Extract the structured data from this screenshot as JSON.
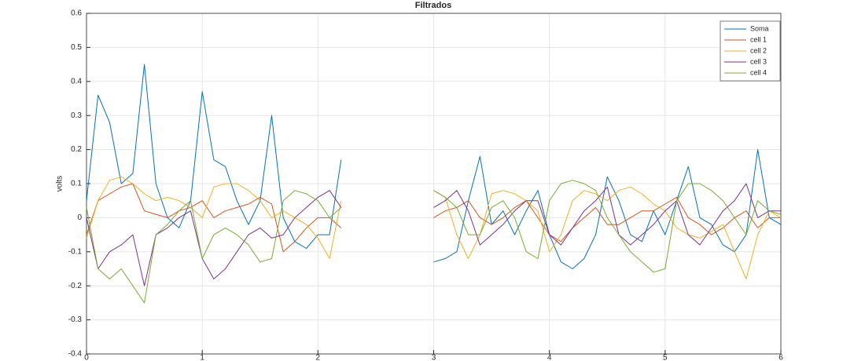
{
  "chart_data": {
    "type": "line",
    "title": "Filtrados",
    "y_label": "volts",
    "x": [
      0,
      0.1,
      0.2,
      0.3,
      0.4,
      0.5,
      0.6,
      0.7,
      0.8,
      0.9,
      1,
      1.1,
      1.2,
      1.3,
      1.4,
      1.5,
      1.6,
      1.7,
      1.8,
      1.9,
      2,
      2.1,
      2.2,
      2.3,
      2.4,
      2.5,
      2.6,
      2.7,
      2.8,
      2.9,
      3,
      3.1,
      3.2,
      3.3,
      3.4,
      3.5,
      3.6,
      3.7,
      3.8,
      3.9,
      4,
      4.1,
      4.2,
      4.3,
      4.4,
      4.5,
      4.6,
      4.7,
      4.8,
      4.9,
      5,
      5.1,
      5.2,
      5.3,
      5.4,
      5.5,
      5.6,
      5.7,
      5.8,
      5.9,
      6
    ],
    "series": [
      {
        "name": "Soma",
        "color": "#0072BD",
        "values": [
          0.05,
          0.36,
          0.28,
          0.1,
          0.13,
          0.45,
          0.1,
          0.0,
          -0.03,
          0.05,
          0.37,
          0.17,
          0.15,
          0.05,
          -0.02,
          0.05,
          0.3,
          0.0,
          -0.07,
          -0.09,
          -0.05,
          -0.05,
          0.17,
          null,
          null,
          null,
          null,
          null,
          null,
          null,
          -0.13,
          -0.12,
          -0.1,
          0.05,
          0.18,
          -0.02,
          0.02,
          -0.05,
          0.02,
          0.08,
          -0.05,
          -0.13,
          -0.15,
          -0.12,
          -0.05,
          0.12,
          0.05,
          -0.05,
          -0.07,
          0.02,
          -0.05,
          0.05,
          0.15,
          0.0,
          -0.02,
          -0.08,
          -0.1,
          -0.05,
          0.2,
          0.0,
          -0.02
        ]
      },
      {
        "name": "cell 1",
        "color": "#D95319",
        "values": [
          -0.05,
          0.05,
          0.07,
          0.09,
          0.1,
          0.02,
          0.01,
          0.0,
          0.02,
          0.03,
          0.05,
          0.0,
          0.02,
          0.03,
          0.04,
          0.06,
          0.04,
          -0.1,
          -0.07,
          -0.03,
          0.0,
          0.0,
          -0.03,
          null,
          null,
          null,
          null,
          null,
          null,
          null,
          0.0,
          0.02,
          0.03,
          0.05,
          0.0,
          -0.02,
          0.0,
          0.03,
          0.05,
          0.0,
          -0.05,
          -0.07,
          -0.03,
          0.0,
          0.03,
          -0.02,
          -0.02,
          0.0,
          0.02,
          0.02,
          0.04,
          0.06,
          0.0,
          -0.02,
          -0.05,
          -0.03,
          0.0,
          0.02,
          -0.03,
          0.0,
          0.0
        ]
      },
      {
        "name": "cell 2",
        "color": "#EDB120",
        "values": [
          -0.06,
          0.05,
          0.11,
          0.12,
          0.1,
          0.07,
          0.05,
          0.06,
          0.05,
          0.03,
          0.0,
          0.09,
          0.1,
          0.1,
          0.08,
          0.05,
          0.0,
          0.02,
          0.0,
          -0.02,
          -0.06,
          -0.12,
          0.05,
          null,
          null,
          null,
          null,
          null,
          null,
          null,
          0.08,
          0.06,
          -0.05,
          -0.12,
          -0.05,
          0.07,
          0.08,
          0.07,
          0.05,
          0.02,
          -0.1,
          -0.05,
          0.05,
          0.08,
          0.07,
          0.05,
          0.08,
          0.09,
          0.07,
          0.04,
          0.02,
          -0.03,
          -0.05,
          -0.06,
          -0.04,
          -0.02,
          -0.1,
          -0.18,
          -0.05,
          0.02,
          0.0
        ]
      },
      {
        "name": "cell 3",
        "color": "#7E2F8E",
        "values": [
          0.0,
          -0.15,
          -0.1,
          -0.08,
          -0.05,
          -0.2,
          -0.05,
          -0.03,
          0.0,
          0.02,
          -0.12,
          -0.18,
          -0.15,
          -0.1,
          -0.05,
          -0.03,
          -0.06,
          -0.05,
          0.0,
          0.03,
          0.06,
          0.08,
          0.03,
          null,
          null,
          null,
          null,
          null,
          null,
          null,
          0.03,
          0.05,
          0.08,
          0.02,
          -0.08,
          -0.05,
          -0.02,
          0.02,
          0.05,
          0.05,
          -0.05,
          -0.08,
          -0.03,
          0.02,
          0.05,
          0.09,
          -0.05,
          -0.08,
          -0.05,
          -0.02,
          0.02,
          0.05,
          -0.05,
          -0.08,
          -0.03,
          0.02,
          0.05,
          0.1,
          0.0,
          0.02,
          0.02
        ]
      },
      {
        "name": "cell 4",
        "color": "#77AC30",
        "values": [
          0.03,
          -0.15,
          -0.18,
          -0.15,
          -0.2,
          -0.25,
          -0.05,
          -0.02,
          0.02,
          0.05,
          -0.12,
          -0.05,
          -0.03,
          -0.05,
          -0.08,
          -0.13,
          -0.12,
          0.05,
          0.08,
          0.07,
          0.05,
          0.0,
          0.03,
          null,
          null,
          null,
          null,
          null,
          null,
          null,
          0.08,
          0.06,
          0.03,
          -0.05,
          -0.05,
          0.03,
          0.05,
          0.0,
          -0.1,
          -0.12,
          0.05,
          0.1,
          0.11,
          0.1,
          0.08,
          0.0,
          -0.05,
          -0.1,
          -0.13,
          -0.16,
          -0.15,
          0.05,
          0.1,
          0.1,
          0.08,
          0.05,
          0.0,
          -0.05,
          0.05,
          0.02,
          0.01
        ]
      }
    ],
    "xlim": [
      0,
      6
    ],
    "xticks": [
      0,
      1,
      2,
      3,
      4,
      5,
      6
    ],
    "ylim": [
      -0.4,
      0.6
    ],
    "yticks": [
      -0.4,
      -0.3,
      -0.2,
      -0.1,
      0,
      0.1,
      0.2,
      0.3,
      0.4,
      0.5,
      0.6
    ],
    "grid": true,
    "legend": "northeast"
  }
}
